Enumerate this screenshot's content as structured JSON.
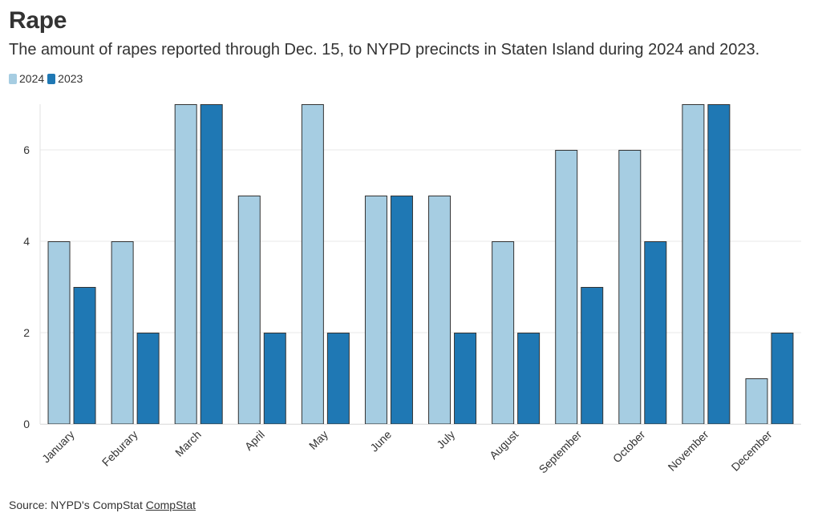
{
  "title": "Rape",
  "subtitle": "The amount of rapes reported through Dec. 15, to NYPD precincts in Staten Island during 2024 and 2023.",
  "source": {
    "prefix": "Source: NYPD's CompStat",
    "link_text": "CompStat"
  },
  "chart_data": {
    "type": "bar",
    "title": "Rape",
    "subtitle": "The amount of rapes reported through Dec. 15, to NYPD precincts in Staten Island during 2024 and 2023.",
    "xlabel": "",
    "ylabel": "",
    "categories": [
      "January",
      "Feburary",
      "March",
      "April",
      "May",
      "June",
      "July",
      "August",
      "September",
      "October",
      "November",
      "December"
    ],
    "series": [
      {
        "name": "2024",
        "color": "#a6cde2",
        "values": [
          4,
          4,
          7,
          5,
          7,
          5,
          5,
          4,
          6,
          6,
          7,
          1
        ]
      },
      {
        "name": "2023",
        "color": "#1f78b4",
        "values": [
          3,
          2,
          7,
          2,
          2,
          5,
          2,
          2,
          3,
          4,
          7,
          2
        ]
      }
    ],
    "ylim": [
      0,
      7
    ],
    "yticks": [
      0,
      2,
      4,
      6
    ],
    "grid": true,
    "legend": "top-left"
  }
}
